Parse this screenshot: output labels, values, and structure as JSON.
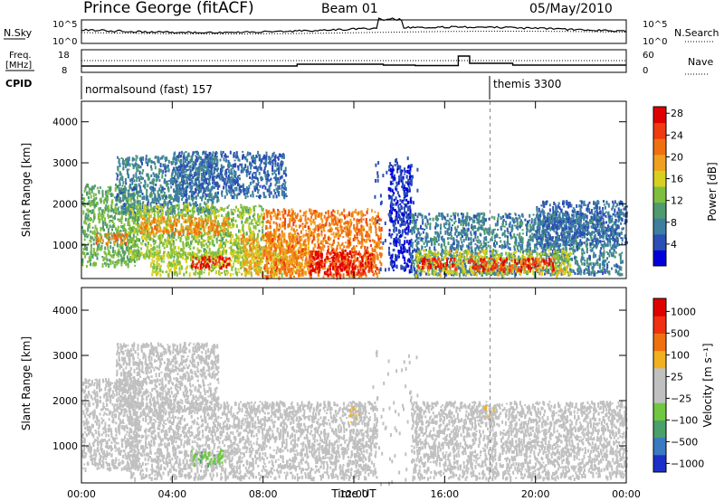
{
  "header": {
    "title": "Prince George (fitACF)",
    "beam": "Beam 01",
    "date": "05/May/2010"
  },
  "params": {
    "nsky_label": "N.Sky",
    "nsky_ticks": [
      "10^5",
      "10^0"
    ],
    "nsearch_label": "N.Search",
    "nsearch_ticks": [
      "10^5",
      "10^0"
    ],
    "freq_label": "Freq.",
    "freq_unit": "[MHz]",
    "freq_ticks": [
      "18",
      "8"
    ],
    "nave_label": "Nave",
    "nave_ticks": [
      "60",
      "0"
    ],
    "cpid_label": "CPID",
    "modes": [
      {
        "name": "normalsound (fast) 157",
        "start_hour": 0
      },
      {
        "name": "themis 3300",
        "start_hour": 18
      }
    ]
  },
  "colors": {
    "power_scale": [
      "#0000dd",
      "#2b4fb5",
      "#3e7fa0",
      "#4f9a6e",
      "#7fbf40",
      "#d8d020",
      "#f0a020",
      "#f07010",
      "#f03a10",
      "#e00000"
    ],
    "velocity_scale": [
      "#1b30c8",
      "#3a7ac0",
      "#4aa06a",
      "#70c840",
      "#c0c0c0",
      "#c0c0c0",
      "#f0b020",
      "#f07010",
      "#f03010",
      "#e00000"
    ]
  },
  "chart_data": [
    {
      "type": "heatmap",
      "name": "power",
      "xlabel": "",
      "ylabel": "Slant Range [km]",
      "xlim": [
        0,
        24
      ],
      "ylim": [
        180,
        4500
      ],
      "yticks": [
        "1000",
        "2000",
        "3000",
        "4000"
      ],
      "colorbar_label": "Power [dB]",
      "colorbar_ticks": [
        "4",
        "8",
        "12",
        "16",
        "20",
        "24",
        "28"
      ],
      "clim": [
        0,
        30
      ],
      "regions": [
        {
          "t0": 0.0,
          "t1": 2.5,
          "r0": 500,
          "r1": 2500,
          "v": 12
        },
        {
          "t0": 0.6,
          "t1": 2.0,
          "r0": 1050,
          "r1": 1300,
          "v": 22
        },
        {
          "t0": 1.5,
          "t1": 6.0,
          "r0": 1800,
          "r1": 3200,
          "v": 8
        },
        {
          "t0": 2.0,
          "t1": 8.0,
          "r0": 700,
          "r1": 2000,
          "v": 14
        },
        {
          "t0": 2.5,
          "t1": 6.5,
          "r0": 1300,
          "r1": 1700,
          "v": 21
        },
        {
          "t0": 3.0,
          "t1": 9.0,
          "r0": 300,
          "r1": 900,
          "v": 15
        },
        {
          "t0": 4.8,
          "t1": 6.5,
          "r0": 450,
          "r1": 750,
          "v": 27
        },
        {
          "t0": 4.0,
          "t1": 9.0,
          "r0": 2200,
          "r1": 3300,
          "v": 6
        },
        {
          "t0": 7.0,
          "t1": 10.0,
          "r0": 300,
          "r1": 1300,
          "v": 19
        },
        {
          "t0": 8.0,
          "t1": 13.2,
          "r0": 250,
          "r1": 1900,
          "v": 22
        },
        {
          "t0": 10.0,
          "t1": 12.8,
          "r0": 300,
          "r1": 900,
          "v": 28
        },
        {
          "t0": 13.5,
          "t1": 14.5,
          "r0": 400,
          "r1": 3000,
          "v": 3
        },
        {
          "t0": 14.5,
          "t1": 23.8,
          "r0": 300,
          "r1": 1800,
          "v": 8
        },
        {
          "t0": 14.7,
          "t1": 21.5,
          "r0": 300,
          "r1": 900,
          "v": 16
        },
        {
          "t0": 14.8,
          "t1": 16.5,
          "r0": 450,
          "r1": 700,
          "v": 27
        },
        {
          "t0": 17.0,
          "t1": 20.8,
          "r0": 400,
          "r1": 700,
          "v": 26
        },
        {
          "t0": 20.0,
          "t1": 24.0,
          "r0": 1000,
          "r1": 2100,
          "v": 6
        }
      ]
    },
    {
      "type": "heatmap",
      "name": "velocity",
      "xlabel": "Time UT",
      "ylabel": "Slant Range [km]",
      "xlim": [
        0,
        24
      ],
      "ylim": [
        180,
        4500
      ],
      "xticks": [
        "00:00",
        "04:00",
        "08:00",
        "12:00",
        "16:00",
        "20:00",
        "00:00"
      ],
      "yticks": [
        "1000",
        "2000",
        "3000",
        "4000"
      ],
      "colorbar_label": "Velocity [m s⁻¹]",
      "colorbar_ticks": [
        "1000",
        "500",
        "100",
        "25",
        "−25",
        "−100",
        "−500",
        "−1000"
      ],
      "clim": [
        -1200,
        1200
      ],
      "regions": [
        {
          "t0": 0.0,
          "t1": 2.5,
          "r0": 500,
          "r1": 2500,
          "v": 0
        },
        {
          "t0": 1.5,
          "t1": 6.0,
          "r0": 1800,
          "r1": 3300,
          "v": 0
        },
        {
          "t0": 2.0,
          "t1": 13.0,
          "r0": 300,
          "r1": 2000,
          "v": 0
        },
        {
          "t0": 4.8,
          "t1": 6.2,
          "r0": 600,
          "r1": 950,
          "v": -300
        },
        {
          "t0": 11.8,
          "t1": 12.5,
          "r0": 1500,
          "r1": 1900,
          "v": 150
        },
        {
          "t0": 14.5,
          "t1": 24.0,
          "r0": 300,
          "r1": 2000,
          "v": 0
        },
        {
          "t0": 17.5,
          "t1": 18.3,
          "r0": 1600,
          "r1": 1900,
          "v": 120
        }
      ]
    }
  ]
}
